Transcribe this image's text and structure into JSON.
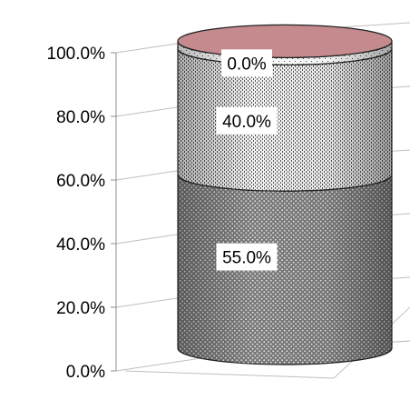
{
  "chart_data": {
    "type": "bar",
    "stacked": true,
    "three_d": true,
    "shape": "cylinder",
    "ylim": [
      0,
      100
    ],
    "yticks": [
      "0.0%",
      "20.0%",
      "40.0%",
      "60.0%",
      "80.0%",
      "100.0%"
    ],
    "grid": true,
    "series": [
      {
        "values": [
          55
        ],
        "label": "55.0%",
        "color": "#808080",
        "pattern": "dark-dots"
      },
      {
        "values": [
          40
        ],
        "label": "40.0%",
        "color": "#e6e6e6",
        "pattern": "light-dots"
      },
      {
        "values": [
          0
        ],
        "label": "0.0%",
        "color": "#ffffff",
        "pattern": "sparse-dots"
      }
    ],
    "top_color": "#c48a8e"
  }
}
